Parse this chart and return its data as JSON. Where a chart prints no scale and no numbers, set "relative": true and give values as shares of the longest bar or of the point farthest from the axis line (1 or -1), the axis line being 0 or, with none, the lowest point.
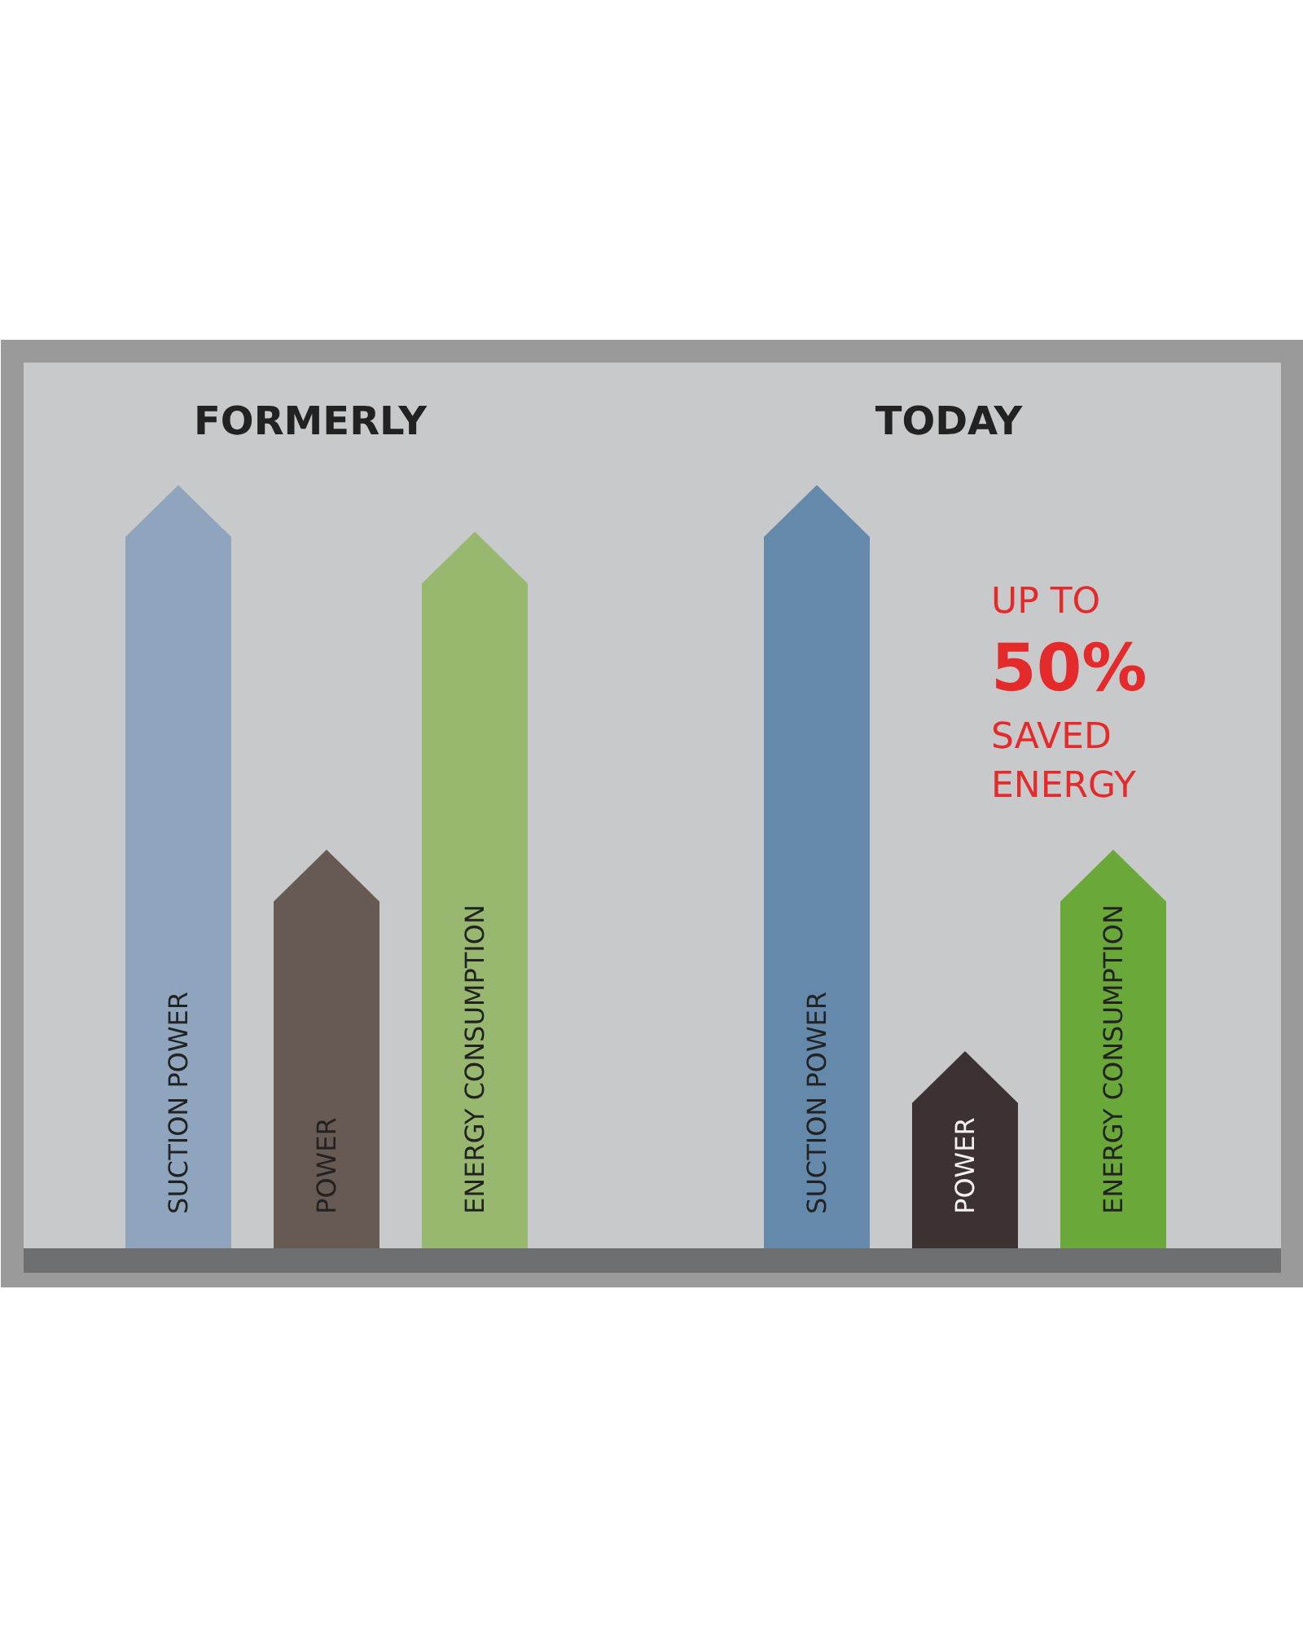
{
  "chart_data": {
    "type": "bar",
    "relative": true,
    "categories": [
      "FORMERLY",
      "TODAY"
    ],
    "series": [
      {
        "name": "SUCTION POWER",
        "colors": [
          "#8fa5bd",
          "#6589ab"
        ],
        "values": [
          1,
          1
        ]
      },
      {
        "name": "POWER",
        "colors": [
          "#675a52",
          "#3d3232"
        ],
        "values": [
          0.53,
          0.27
        ]
      },
      {
        "name": "ENERGY CONSUMPTION",
        "colors": [
          "#98b86f",
          "#6aa83a"
        ],
        "values": [
          0.94,
          0.53
        ]
      }
    ],
    "annotations": [
      "UP TO\n50%\nSAVED\nENERGY"
    ],
    "legend": false
  }
}
